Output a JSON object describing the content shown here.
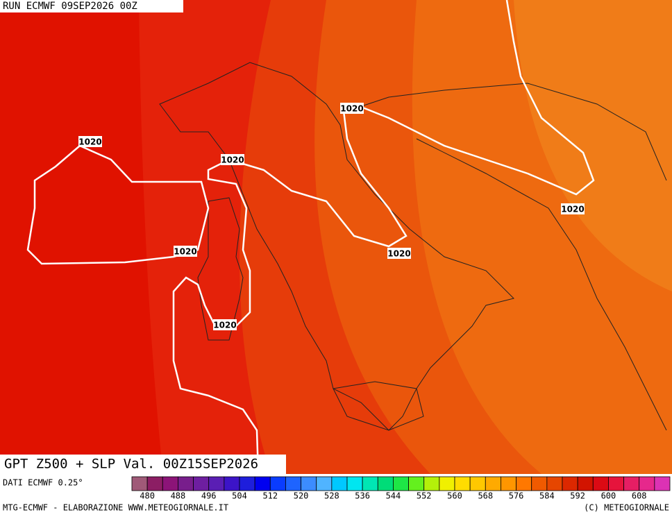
{
  "header": {
    "run": "RUN ECMWF 09SEP2026 00Z"
  },
  "map": {
    "title": "GPT Z500 + SLP Val. 00Z15SEP2026",
    "isobar_labels": [
      "1020",
      "1020",
      "1020",
      "1020",
      "1020",
      "1020",
      "1020"
    ]
  },
  "footer": {
    "source": "DATI ECMWF 0.25°",
    "credit_left": "MTG-ECMWF - ELABORAZIONE WWW.METEOGIORNALE.IT",
    "credit_right": "(C) METEOGIORNALE"
  },
  "colorbar": {
    "range": [
      476,
      616
    ],
    "ticks": [
      480,
      488,
      496,
      504,
      512,
      520,
      528,
      536,
      544,
      552,
      560,
      568,
      576,
      584,
      592,
      600,
      608
    ],
    "colors": [
      "#a05a78",
      "#8c1e64",
      "#8c1478",
      "#781e8c",
      "#6e1ea0",
      "#5a1eb4",
      "#3c14c8",
      "#1e1edc",
      "#0000f0",
      "#0a3cff",
      "#1e64ff",
      "#3c8cff",
      "#50b4ff",
      "#00c8ff",
      "#00e6f0",
      "#00e6b4",
      "#00dc78",
      "#1ee646",
      "#64f01e",
      "#b4f00a",
      "#f0f000",
      "#ffdc00",
      "#ffc800",
      "#ffaa00",
      "#ff9600",
      "#ff7800",
      "#f05a00",
      "#e64600",
      "#dc2800",
      "#d21400",
      "#dc0a14",
      "#e6143c",
      "#e61e64",
      "#e6288c",
      "#dc32b4"
    ]
  }
}
